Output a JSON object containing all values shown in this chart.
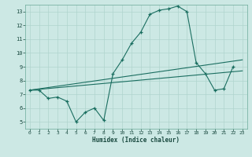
{
  "xlabel": "Humidex (Indice chaleur)",
  "bg_color": "#cce8e4",
  "grid_color": "#b0d4ce",
  "line_color": "#1a6e60",
  "xlim": [
    -0.5,
    23.5
  ],
  "ylim": [
    4.5,
    13.5
  ],
  "xticks": [
    0,
    1,
    2,
    3,
    4,
    5,
    6,
    7,
    8,
    9,
    10,
    11,
    12,
    13,
    14,
    15,
    16,
    17,
    18,
    19,
    20,
    21,
    22,
    23
  ],
  "yticks": [
    5,
    6,
    7,
    8,
    9,
    10,
    11,
    12,
    13
  ],
  "line1_x": [
    0,
    1,
    2,
    3,
    4,
    5,
    6,
    7,
    8,
    9,
    10,
    11,
    12,
    13,
    14,
    15,
    16,
    17,
    18,
    19,
    20,
    21,
    22
  ],
  "line1_y": [
    7.3,
    7.3,
    6.7,
    6.8,
    6.5,
    5.0,
    5.7,
    6.0,
    5.1,
    8.5,
    9.5,
    10.7,
    11.5,
    12.8,
    13.1,
    13.2,
    13.4,
    13.0,
    9.3,
    8.5,
    7.3,
    7.4,
    9.0
  ],
  "line2_x": [
    0,
    23
  ],
  "line2_y": [
    7.3,
    9.5
  ],
  "line3_x": [
    0,
    23
  ],
  "line3_y": [
    7.3,
    8.7
  ]
}
